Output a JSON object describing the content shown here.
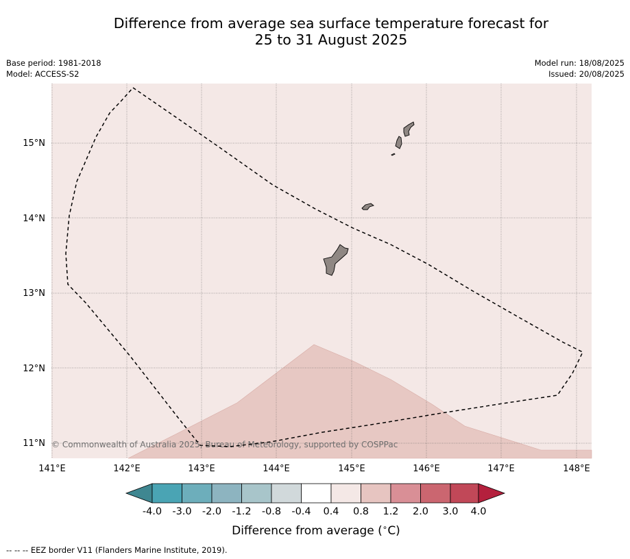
{
  "title_line1": "Difference from average sea surface temperature forecast for",
  "title_line2": "25 to 31 August 2025",
  "meta": {
    "base_period": "Base period: 1981-2018",
    "model": "Model: ACCESS-S2",
    "model_run": "Model run: 18/08/2025",
    "issued": "Issued: 20/08/2025"
  },
  "map": {
    "lon_ticks": [
      "141°E",
      "142°E",
      "143°E",
      "144°E",
      "145°E",
      "146°E",
      "147°E",
      "148°E"
    ],
    "lat_ticks": [
      "15°N",
      "14°N",
      "13°N",
      "12°N",
      "11°N"
    ],
    "copyright": "© Commonwealth of Australia 2025, Bureau of Meteorology, supported by COSPPac",
    "background_fill": "#f4e8e6",
    "warm_fill": "#e7c8c3",
    "land_fill": "#8f8783"
  },
  "colorbar": {
    "labels": [
      "-4.0",
      "-3.0",
      "-2.0",
      "-1.2",
      "-0.8",
      "-0.4",
      "0.4",
      "0.8",
      "1.2",
      "2.0",
      "3.0",
      "4.0"
    ],
    "colors": [
      "#3f8791",
      "#4aa4b4",
      "#6daebb",
      "#8db4c0",
      "#a8c5ca",
      "#d1d9db",
      "#ffffff",
      "#f4e8e6",
      "#e7c5c1",
      "#d98f96",
      "#cb6670",
      "#c14858",
      "#b4203d"
    ],
    "label": "Difference from average ($^\\circ$C)"
  },
  "legend_text": "--  --  -- EEZ border V11 (Flanders Marine Institute, 2019)."
}
